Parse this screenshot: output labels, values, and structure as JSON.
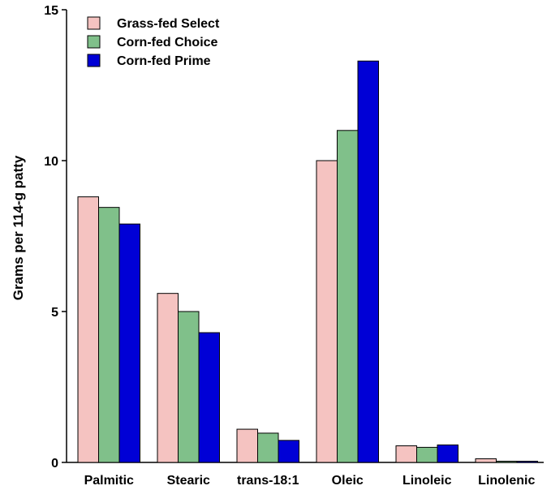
{
  "chart_data": {
    "type": "bar",
    "title": "",
    "xlabel": "",
    "ylabel": "Grams per 114-g patty",
    "ylim": [
      0,
      15
    ],
    "yticks": [
      0,
      5,
      10,
      15
    ],
    "grid": false,
    "legend_position": "top-left",
    "categories": [
      "Palmitic",
      "Stearic",
      "trans-18:1",
      "Oleic",
      "Linoleic",
      "Linolenic"
    ],
    "series": [
      {
        "name": "Grass-fed Select",
        "color": "#f5c3c1",
        "values": [
          8.8,
          5.6,
          1.1,
          10.0,
          0.55,
          0.12
        ]
      },
      {
        "name": "Corn-fed Choice",
        "color": "#80c08a",
        "values": [
          8.45,
          5.0,
          0.97,
          11.0,
          0.5,
          0.04
        ]
      },
      {
        "name": "Corn-fed Prime",
        "color": "#0000d6",
        "values": [
          7.9,
          4.3,
          0.73,
          13.3,
          0.58,
          0.04
        ]
      }
    ]
  }
}
